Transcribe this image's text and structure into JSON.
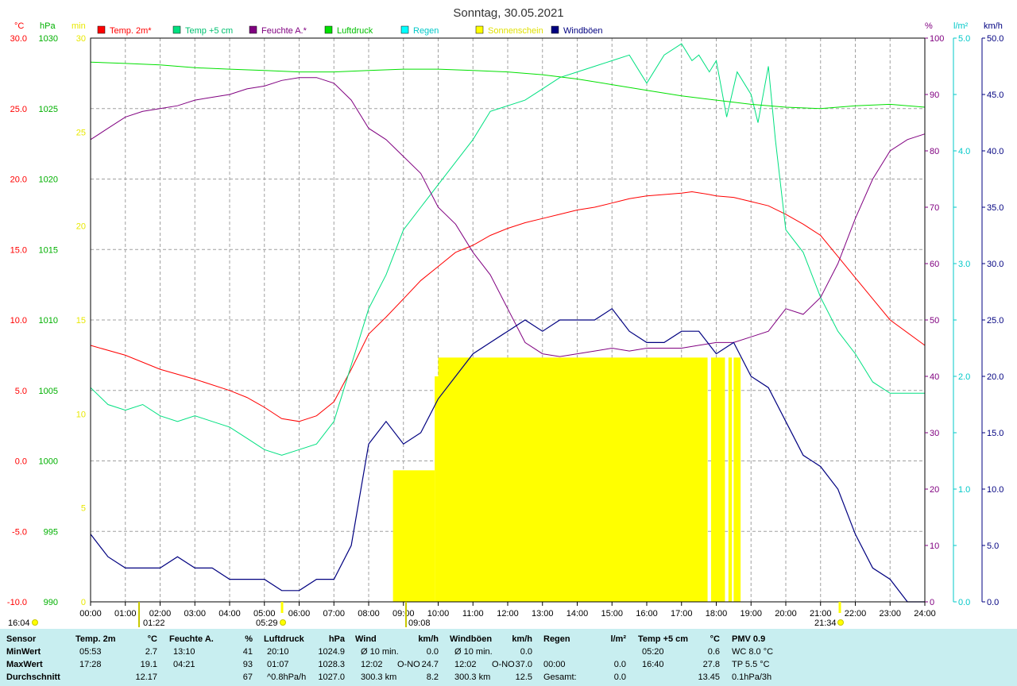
{
  "title": "Sonntag, 30.05.2021",
  "axis_labels": {
    "temp_unit": "°C",
    "press_unit": "hPa",
    "min_unit": "min",
    "pct_unit": "%",
    "rain_unit": "l/m²",
    "wind_unit": "km/h"
  },
  "axis_ticks": {
    "temp": [
      "30.0",
      "25.0",
      "20.0",
      "15.0",
      "10.0",
      "5.0",
      "0.0",
      "-5.0",
      "-10.0"
    ],
    "press": [
      "1030",
      "1025",
      "1020",
      "1015",
      "1010",
      "1005",
      "1000",
      "995",
      "990"
    ],
    "minutes": [
      "30",
      "25",
      "20",
      "15",
      "10",
      "5",
      "0"
    ],
    "pct": [
      "100",
      "90",
      "80",
      "70",
      "60",
      "50",
      "40",
      "30",
      "20",
      "10",
      "0"
    ],
    "rain": [
      "5.0",
      "4.0",
      "3.0",
      "2.0",
      "1.0",
      "0.0"
    ],
    "wind": [
      "50.0",
      "45.0",
      "40.0",
      "35.0",
      "30.0",
      "25.0",
      "20.0",
      "15.0",
      "10.0",
      "5.0",
      "0.0"
    ],
    "time": [
      "00:00",
      "01:00",
      "02:00",
      "03:00",
      "04:00",
      "05:00",
      "06:00",
      "07:00",
      "08:00",
      "09:00",
      "10:00",
      "11:00",
      "12:00",
      "13:00",
      "14:00",
      "15:00",
      "16:00",
      "17:00",
      "18:00",
      "19:00",
      "20:00",
      "21:00",
      "22:00",
      "23:00",
      "24:00"
    ]
  },
  "legend": [
    {
      "name": "Temp. 2m*",
      "color": "#ff0000",
      "text_color": "#ff0000"
    },
    {
      "name": "Temp +5 cm",
      "color": "#00e080",
      "text_color": "#00c070"
    },
    {
      "name": "Feuchte A.*",
      "color": "#800080",
      "text_color": "#800080"
    },
    {
      "name": "Luftdruck",
      "color": "#00e000",
      "text_color": "#00c000"
    },
    {
      "name": "Regen",
      "color": "#00ffff",
      "text_color": "#00c8c8"
    },
    {
      "name": "Sonnenschein",
      "color": "#ffff00",
      "text_color": "#e0e000"
    },
    {
      "name": "Windböen",
      "color": "#000080",
      "text_color": "#000080"
    }
  ],
  "sun_markers": {
    "moon_rise": "01:22",
    "sunrise": "05:29",
    "moon_set": "09:08",
    "left_label": "16:04",
    "sunset": "21:34"
  },
  "chart_data": {
    "type": "line",
    "x_unit": "hours",
    "xlim": [
      0,
      24
    ],
    "series": [
      {
        "name": "Temp. 2m*",
        "unit": "°C",
        "axis": "temp",
        "ylim": [
          -10,
          30
        ],
        "x": [
          0,
          1,
          2,
          3,
          4,
          4.5,
          5,
          5.5,
          6,
          6.5,
          7,
          7.5,
          8,
          8.5,
          9,
          9.5,
          10,
          10.5,
          11,
          11.5,
          12,
          12.5,
          13,
          13.5,
          14,
          14.5,
          15,
          15.5,
          16,
          16.5,
          17,
          17.3,
          17.8,
          18,
          18.5,
          19,
          19.5,
          20,
          20.5,
          21,
          21.5,
          22,
          22.5,
          23,
          24
        ],
        "y": [
          8.2,
          7.5,
          6.5,
          5.8,
          5.0,
          4.5,
          3.8,
          3.0,
          2.8,
          3.2,
          4.2,
          6.5,
          9.0,
          10.2,
          11.5,
          12.8,
          13.8,
          14.8,
          15.3,
          16.0,
          16.5,
          16.9,
          17.2,
          17.5,
          17.8,
          18.0,
          18.3,
          18.6,
          18.8,
          18.9,
          19.0,
          19.1,
          18.9,
          18.8,
          18.7,
          18.4,
          18.1,
          17.5,
          16.8,
          16.0,
          14.5,
          13.0,
          11.5,
          10.0,
          8.2
        ]
      },
      {
        "name": "Temp +5 cm",
        "unit": "°C",
        "axis": "rain",
        "ylim": [
          0,
          5
        ],
        "x": [
          0,
          0.5,
          1,
          1.5,
          2,
          2.5,
          3,
          3.5,
          4,
          4.5,
          5,
          5.5,
          6,
          6.5,
          7,
          7.5,
          8,
          8.5,
          9,
          9.5,
          10,
          10.5,
          11,
          11.5,
          12,
          12.5,
          13,
          13.5,
          14,
          14.5,
          15,
          15.5,
          16,
          16.5,
          17,
          17.3,
          17.5,
          17.8,
          18,
          18.3,
          18.6,
          19,
          19.2,
          19.5,
          19.7,
          20,
          20.5,
          21,
          21.5,
          22,
          22.5,
          23,
          23.5,
          24
        ],
        "y": [
          1.9,
          1.75,
          1.7,
          1.75,
          1.65,
          1.6,
          1.65,
          1.6,
          1.55,
          1.45,
          1.35,
          1.3,
          1.35,
          1.4,
          1.6,
          2.1,
          2.6,
          2.9,
          3.3,
          3.5,
          3.7,
          3.9,
          4.1,
          4.35,
          4.4,
          4.45,
          4.55,
          4.65,
          4.7,
          4.75,
          4.8,
          4.85,
          4.6,
          4.85,
          4.95,
          4.8,
          4.85,
          4.7,
          4.8,
          4.3,
          4.7,
          4.5,
          4.25,
          4.75,
          4.1,
          3.3,
          3.1,
          2.7,
          2.4,
          2.2,
          1.95,
          1.85,
          1.85,
          1.85
        ]
      },
      {
        "name": "Feuchte A.*",
        "unit": "%",
        "axis": "pct",
        "ylim": [
          0,
          100
        ],
        "x": [
          0,
          0.5,
          1,
          1.5,
          2,
          2.5,
          3,
          3.5,
          4,
          4.5,
          5,
          5.5,
          6,
          6.5,
          7,
          7.5,
          8,
          8.5,
          9,
          9.5,
          10,
          10.5,
          11,
          11.5,
          12,
          12.5,
          13,
          13.5,
          14,
          14.5,
          15,
          15.5,
          16,
          16.5,
          17,
          17.5,
          18,
          18.5,
          19,
          19.5,
          20,
          20.5,
          21,
          21.5,
          22,
          22.5,
          23,
          23.5,
          24
        ],
        "y": [
          82,
          84,
          86,
          87,
          87.5,
          88,
          89,
          89.5,
          90,
          91,
          91.5,
          92.5,
          93,
          93,
          92,
          89,
          84,
          82,
          79,
          76,
          70,
          67,
          62,
          58,
          52,
          46,
          44,
          43.5,
          44,
          44.5,
          45,
          44.5,
          45,
          45,
          45,
          45.5,
          46,
          46,
          47,
          48,
          52,
          51,
          54,
          60,
          68,
          75,
          80,
          82,
          83
        ]
      },
      {
        "name": "Luftdruck",
        "unit": "hPa",
        "axis": "press",
        "ylim": [
          990,
          1030
        ],
        "x": [
          0,
          1,
          2,
          3,
          4,
          5,
          6,
          7,
          8,
          9,
          10,
          11,
          12,
          13,
          14,
          15,
          16,
          17,
          18,
          19,
          20,
          21,
          22,
          23,
          24
        ],
        "y": [
          1028.3,
          1028.2,
          1028.1,
          1027.9,
          1027.8,
          1027.7,
          1027.6,
          1027.6,
          1027.7,
          1027.8,
          1027.8,
          1027.7,
          1027.6,
          1027.4,
          1027.1,
          1026.7,
          1026.3,
          1025.9,
          1025.6,
          1025.3,
          1025.1,
          1025.0,
          1025.2,
          1025.3,
          1025.1
        ]
      },
      {
        "name": "Windböen",
        "unit": "km/h",
        "axis": "wind",
        "ylim": [
          0,
          50
        ],
        "x": [
          0,
          0.5,
          1,
          1.5,
          2,
          2.5,
          3,
          3.5,
          4,
          4.5,
          5,
          5.5,
          6,
          6.5,
          7,
          7.5,
          8,
          8.5,
          9,
          9.5,
          10,
          10.5,
          11,
          11.5,
          12,
          12.5,
          13,
          13.5,
          14,
          14.5,
          15,
          15.5,
          16,
          16.5,
          17,
          17.5,
          18,
          18.5,
          19,
          19.5,
          20,
          20.5,
          21,
          21.5,
          22,
          22.5,
          23,
          23.5,
          24
        ],
        "y": [
          6,
          4,
          3,
          3,
          3,
          4,
          3,
          3,
          2,
          2,
          2,
          1,
          1,
          2,
          2,
          5,
          14,
          16,
          14,
          15,
          18,
          20,
          22,
          23,
          24,
          25,
          24,
          25,
          25,
          25,
          26,
          24,
          23,
          23,
          24,
          24,
          22,
          23,
          20,
          19,
          16,
          13,
          12,
          10,
          6,
          3,
          2,
          0,
          0
        ]
      }
    ],
    "bars": {
      "name": "Sonnenschein",
      "unit": "min",
      "axis": "minutes",
      "ylim": [
        0,
        30
      ],
      "segments": [
        {
          "start": 8.7,
          "end": 9.9,
          "value": 7
        },
        {
          "start": 9.9,
          "end": 10.0,
          "value": 12
        },
        {
          "start": 10.0,
          "end": 17.75,
          "value": 13
        },
        {
          "start": 17.85,
          "end": 18.25,
          "value": 13
        },
        {
          "start": 18.35,
          "end": 18.45,
          "value": 13
        },
        {
          "start": 18.5,
          "end": 18.7,
          "value": 13
        }
      ]
    },
    "grid": true
  },
  "summary": {
    "headers": {
      "sensor": "Sensor",
      "temp": "Temp. 2m",
      "temp_u": "°C",
      "hum": "Feuchte A.",
      "hum_u": "%",
      "press": "Luftdruck",
      "press_u": "hPa",
      "wind": "Wind",
      "wind_u": "km/h",
      "gust": "Windböen",
      "gust_u": "km/h",
      "rain": "Regen",
      "rain_u": "l/m²",
      "t5": "Temp +5 cm",
      "t5_u": "°C",
      "pmv": "PMV 0.9"
    },
    "rows": [
      {
        "label": "MinWert",
        "temp_t": "05:53",
        "temp_v": "2.7",
        "hum_t": "13:10",
        "hum_v": "41",
        "press_t": "20:10",
        "press_v": "1024.9",
        "wind_t": "Ø 10 min.",
        "wind_d": "",
        "wind_v": "0.0",
        "gust_t": "Ø 10 min.",
        "gust_d": "",
        "gust_v": "0.0",
        "rain_t": "",
        "rain_v": "",
        "t5_t": "05:20",
        "t5_v": "0.6",
        "pmv": "WC 8.0 °C"
      },
      {
        "label": "MaxWert",
        "temp_t": "17:28",
        "temp_v": "19.1",
        "hum_t": "04:21",
        "hum_v": "93",
        "press_t": "01:07",
        "press_v": "1028.3",
        "wind_t": "12:02",
        "wind_d": "O-NO",
        "wind_v": "24.7",
        "gust_t": "12:02",
        "gust_d": "O-NO",
        "gust_v": "37.0",
        "rain_t": "00:00",
        "rain_v": "0.0",
        "t5_t": "16:40",
        "t5_v": "27.8",
        "pmv": "TP 5.5 °C"
      },
      {
        "label": "Durchschnitt",
        "temp_t": "",
        "temp_v": "12.17",
        "hum_t": "",
        "hum_v": "67",
        "press_t": "^0.8hPa/h",
        "press_v": "1027.0",
        "wind_t": "300.3 km",
        "wind_d": "",
        "wind_v": "8.2",
        "gust_t": "300.3 km",
        "gust_d": "",
        "gust_v": "12.5",
        "rain_t": "Gesamt:",
        "rain_v": "0.0",
        "t5_t": "",
        "t5_v": "13.45",
        "pmv": "0.1hPa/3h"
      }
    ]
  }
}
